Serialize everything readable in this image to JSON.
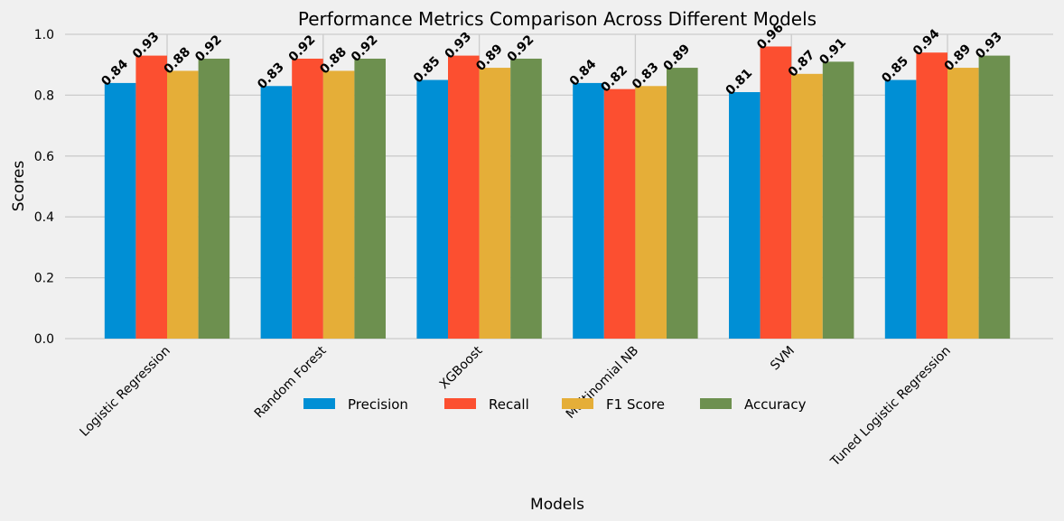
{
  "chart_data": {
    "type": "bar",
    "title": "Performance Metrics Comparison Across Different Models",
    "xlabel": "Models",
    "ylabel": "Scores",
    "ylim": [
      0,
      1.0
    ],
    "yticks": [
      "0.0",
      "0.2",
      "0.4",
      "0.6",
      "0.8",
      "1.0"
    ],
    "grid": true,
    "legend_position": "bottom-center",
    "categories": [
      "Logistic Regression",
      "Random Forest",
      "XGBoost",
      "Multinomial NB",
      "SVM",
      "Tuned Logistic Regression"
    ],
    "series": [
      {
        "name": "Precision",
        "color": "#008fd5",
        "values": [
          0.84,
          0.83,
          0.85,
          0.84,
          0.81,
          0.85
        ],
        "labels": [
          "0.84",
          "0.83",
          "0.85",
          "0.84",
          "0.81",
          "0.85"
        ]
      },
      {
        "name": "Recall",
        "color": "#fc4f30",
        "values": [
          0.93,
          0.92,
          0.93,
          0.82,
          0.96,
          0.94
        ],
        "labels": [
          "0.93",
          "0.92",
          "0.93",
          "0.82",
          "0.96",
          "0.94"
        ]
      },
      {
        "name": "F1 Score",
        "color": "#e5ae38",
        "values": [
          0.88,
          0.88,
          0.89,
          0.83,
          0.87,
          0.89
        ],
        "labels": [
          "0.88",
          "0.88",
          "0.89",
          "0.83",
          "0.87",
          "0.89"
        ]
      },
      {
        "name": "Accuracy",
        "color": "#6d904f",
        "values": [
          0.92,
          0.92,
          0.92,
          0.89,
          0.91,
          0.93
        ],
        "labels": [
          "0.92",
          "0.92",
          "0.92",
          "0.89",
          "0.91",
          "0.93"
        ]
      }
    ]
  }
}
